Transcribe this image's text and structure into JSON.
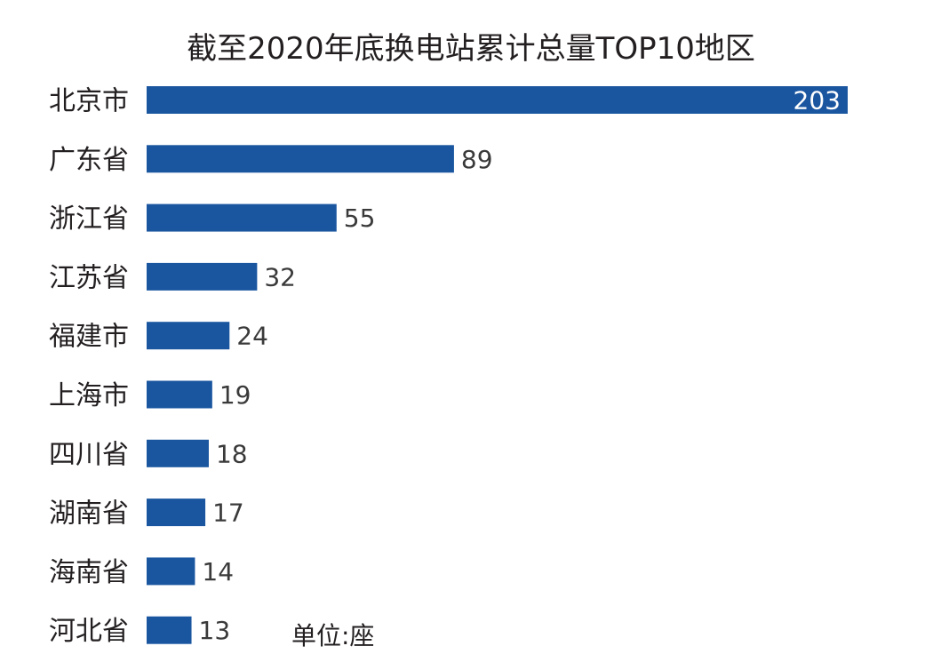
{
  "chart_data": {
    "type": "bar",
    "orientation": "horizontal",
    "title": "截至2020年底换电站累计总量TOP10地区",
    "unit_note": "单位:座",
    "categories": [
      "北京市",
      "广东省",
      "浙江省",
      "江苏省",
      "福建市",
      "上海市",
      "四川省",
      "湖南省",
      "海南省",
      "河北省"
    ],
    "values": [
      203,
      89,
      55,
      32,
      24,
      19,
      18,
      17,
      14,
      13
    ],
    "xlim": [
      0,
      203
    ],
    "grid": false,
    "legend": "none",
    "bar_color": "#1a56a0",
    "label_color": "#3a3a3a",
    "inside_label_color": "#ffffff"
  }
}
